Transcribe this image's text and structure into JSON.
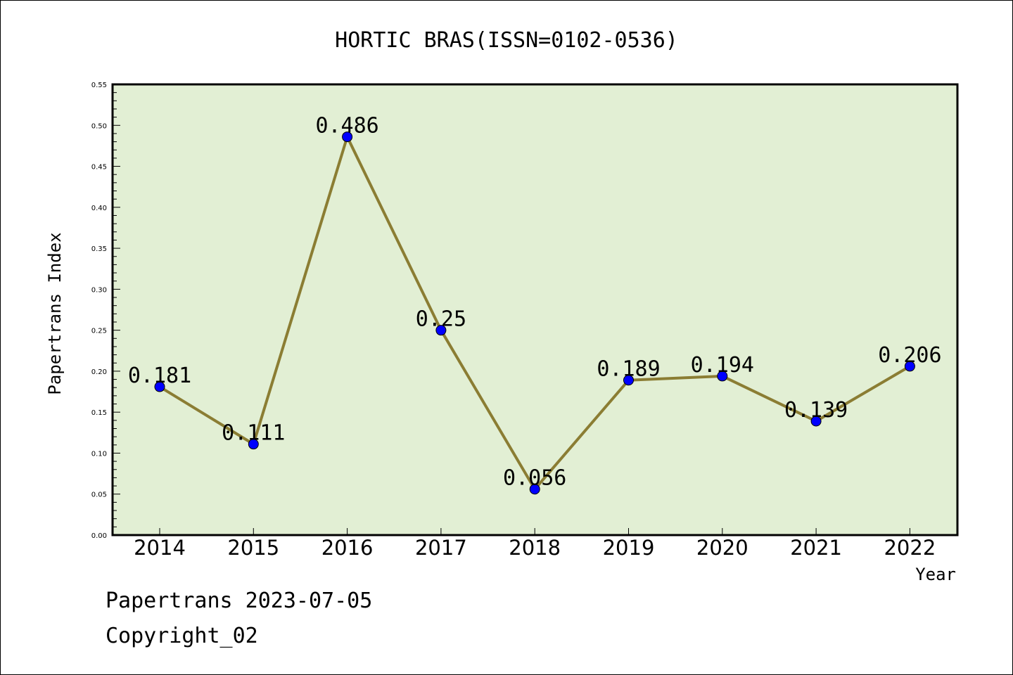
{
  "chart_data": {
    "type": "line",
    "title": "HORTIC BRAS(ISSN=0102-0536)",
    "xlabel": "Year",
    "ylabel": "Papertrans Index",
    "categories": [
      "2014",
      "2015",
      "2016",
      "2017",
      "2018",
      "2019",
      "2020",
      "2021",
      "2022"
    ],
    "series": [
      {
        "values": [
          0.181,
          0.111,
          0.486,
          0.25,
          0.056,
          0.189,
          0.194,
          0.139,
          0.206
        ],
        "data_labels": [
          "0.181",
          "0.111",
          "0.486",
          "0.25",
          "0.056",
          "0.189",
          "0.194",
          "0.139",
          "0.206"
        ]
      }
    ],
    "ylim": [
      0,
      0.55
    ],
    "yticks": [
      "0.00",
      "0.05",
      "0.10",
      "0.15",
      "0.20",
      "0.25",
      "0.30",
      "0.35",
      "0.40",
      "0.45",
      "0.50",
      "0.55"
    ],
    "grid": false,
    "legend": "none",
    "colors": {
      "plot_background": "#e2efd4",
      "line": "#8b7d33",
      "marker": "#0000ff"
    }
  },
  "footer": {
    "line1": "Papertrans 2023-07-05",
    "line2": "Copyright_02"
  }
}
